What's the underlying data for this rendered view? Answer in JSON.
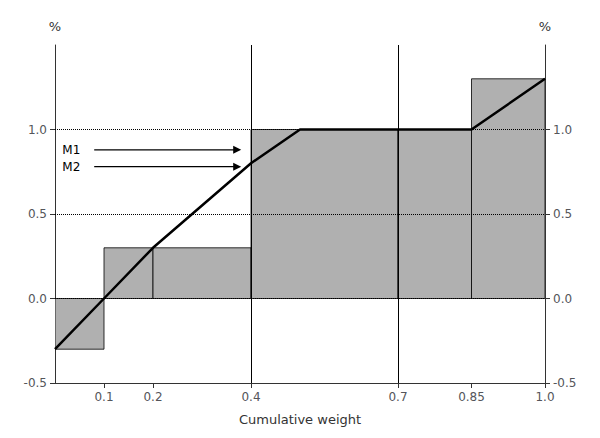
{
  "chart_data": {
    "type": "bar",
    "xlabel": "Cumulative weight",
    "ylabel": "%",
    "y2label": "%",
    "xlim": [
      0.0,
      1.0
    ],
    "xticks": [
      0.1,
      0.2,
      0.4,
      0.7,
      0.85,
      {
        "value": 1.0,
        "label": "1.0"
      }
    ],
    "ylim": [
      -0.5,
      1.5
    ],
    "yticks": [
      -0.5,
      {
        "value": 0.0,
        "label": "0.0"
      },
      0.5,
      {
        "value": 1.0,
        "label": "1.0"
      }
    ],
    "y2lim": [
      -0.5,
      1.5
    ],
    "y2ticks": [
      -0.5,
      {
        "value": 0.0,
        "label": "0.0"
      },
      0.5,
      {
        "value": 1.0,
        "label": "1.0"
      }
    ],
    "grid": false,
    "series": [
      {
        "type": "bar",
        "bins": [
          0.0,
          0.1,
          0.2,
          0.4,
          0.7,
          0.85,
          1.0
        ],
        "values": [
          -0.3,
          0.3,
          0.3,
          1.0,
          1.0,
          1.3
        ],
        "color": "#b0b0b0"
      },
      {
        "type": "line",
        "x": [
          0.0,
          0.1,
          0.2,
          0.4,
          0.5,
          0.7,
          0.85,
          1.0
        ],
        "values": [
          -0.3,
          0.0,
          0.3,
          0.8,
          1.0,
          1.0,
          1.0,
          1.3
        ],
        "color": "#000000"
      },
      {
        "type": "hline",
        "values": [
          0.0,
          0.5,
          1.0
        ],
        "line_style": "dotted",
        "color": "#000000"
      },
      {
        "type": "vline",
        "x": [
          0.4,
          0.7
        ],
        "line_style": "solid",
        "color": "#000000"
      }
    ],
    "annotations": [
      {
        "text": "M1",
        "x": 0.015,
        "y": 0.88,
        "arrow_x": [
          0.08,
          0.38
        ]
      },
      {
        "text": "M2",
        "x": 0.015,
        "y": 0.78,
        "arrow_x": [
          0.08,
          0.38
        ]
      }
    ]
  }
}
